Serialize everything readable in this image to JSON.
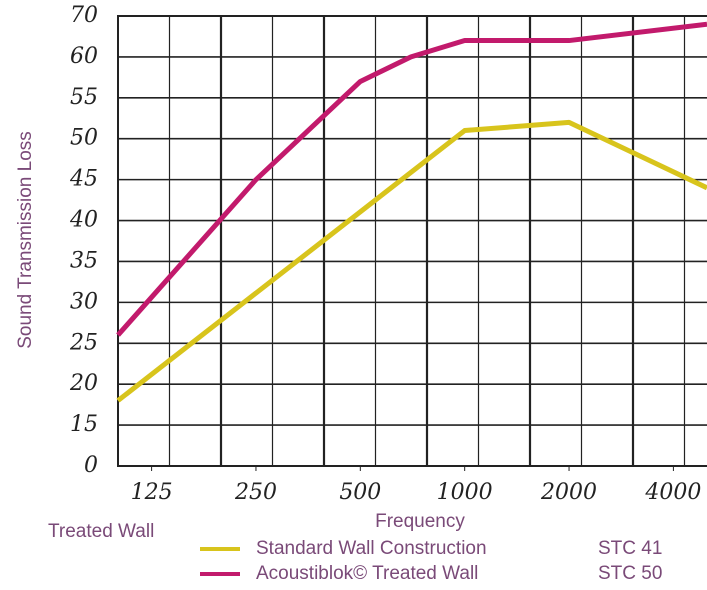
{
  "chart_data": {
    "type": "line",
    "y_label": "Sound Transmission Loss",
    "x_label": "Frequency",
    "note": "Treated Wall",
    "xscale": "log",
    "xlim": [
      100,
      5000
    ],
    "xticks": [
      125,
      250,
      500,
      1000,
      2000,
      4000
    ],
    "ylim": [
      0,
      70
    ],
    "yticks": [
      0,
      15,
      20,
      25,
      30,
      35,
      40,
      45,
      50,
      55,
      60,
      70
    ],
    "y_tick_spacing": "even",
    "grid": true,
    "series": [
      {
        "name": "Standard Wall Construction",
        "rating": "STC 41",
        "color": "#d8c41c",
        "x": [
          100,
          1000,
          2000,
          5000
        ],
        "values": [
          18,
          51,
          52,
          44
        ]
      },
      {
        "name": "Acoustiblok© Treated Wall",
        "rating": "STC 50",
        "color": "#c21a6c",
        "x": [
          100,
          250,
          500,
          700,
          1000,
          2000,
          5000
        ],
        "values": [
          26,
          45,
          57,
          60,
          64,
          64,
          68
        ]
      }
    ]
  }
}
